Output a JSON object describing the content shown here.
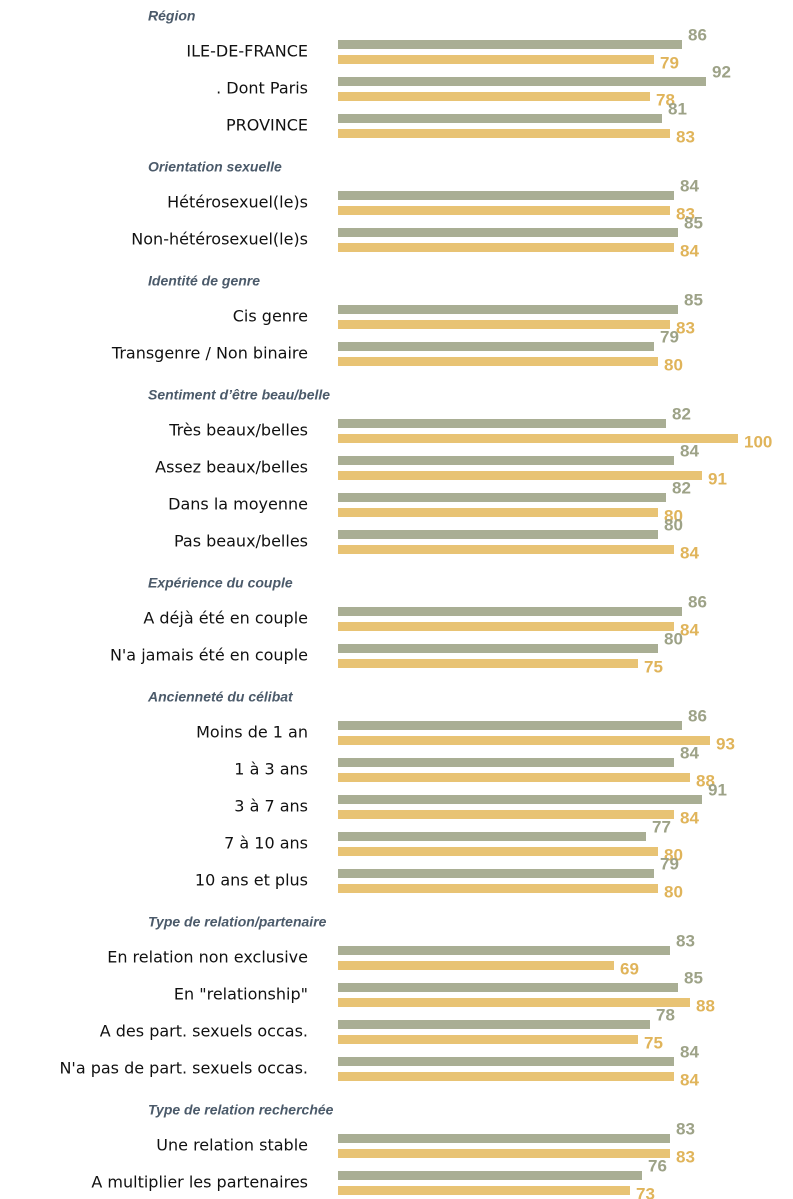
{
  "chart_data": [
    {
      "type": "bar",
      "title": "Région",
      "xlim": [
        0,
        100
      ],
      "categories": [
        "ILE-DE-FRANCE",
        ". Dont Paris",
        "PROVINCE"
      ],
      "series": [
        {
          "color": "#a9ae94",
          "values": [
            86,
            92,
            81
          ]
        },
        {
          "color": "#e8c374",
          "values": [
            79,
            78,
            83
          ]
        }
      ]
    },
    {
      "type": "bar",
      "title": "Orientation sexuelle",
      "xlim": [
        0,
        100
      ],
      "categories": [
        "Hétérosexuel(le)s",
        "Non-hétérosexuel(le)s"
      ],
      "series": [
        {
          "color": "#a9ae94",
          "values": [
            84,
            85
          ]
        },
        {
          "color": "#e8c374",
          "values": [
            83,
            84
          ]
        }
      ]
    },
    {
      "type": "bar",
      "title": "Identité de genre",
      "xlim": [
        0,
        100
      ],
      "categories": [
        "Cis genre",
        "Transgenre / Non binaire"
      ],
      "series": [
        {
          "color": "#a9ae94",
          "values": [
            85,
            79
          ]
        },
        {
          "color": "#e8c374",
          "values": [
            83,
            80
          ]
        }
      ]
    },
    {
      "type": "bar",
      "title": "Sentiment d’être beau/belle",
      "xlim": [
        0,
        100
      ],
      "categories": [
        "Très beaux/belles",
        "Assez beaux/belles",
        "Dans la moyenne",
        "Pas beaux/belles"
      ],
      "series": [
        {
          "color": "#a9ae94",
          "values": [
            82,
            84,
            82,
            80
          ]
        },
        {
          "color": "#e8c374",
          "values": [
            100,
            91,
            80,
            84
          ]
        }
      ]
    },
    {
      "type": "bar",
      "title": "Expérience du couple",
      "xlim": [
        0,
        100
      ],
      "categories": [
        "A déjà été en couple",
        "N'a jamais été en couple"
      ],
      "series": [
        {
          "color": "#a9ae94",
          "values": [
            86,
            80
          ]
        },
        {
          "color": "#e8c374",
          "values": [
            84,
            75
          ]
        }
      ]
    },
    {
      "type": "bar",
      "title": "Ancienneté du célibat",
      "xlim": [
        0,
        100
      ],
      "categories": [
        "Moins de 1 an",
        "1 à 3 ans",
        "3 à 7 ans",
        "7 à 10 ans",
        "10 ans et plus"
      ],
      "series": [
        {
          "color": "#a9ae94",
          "values": [
            86,
            84,
            91,
            77,
            79
          ]
        },
        {
          "color": "#e8c374",
          "values": [
            93,
            88,
            84,
            80,
            80
          ]
        }
      ]
    },
    {
      "type": "bar",
      "title": "Type de relation/partenaire",
      "xlim": [
        0,
        100
      ],
      "categories": [
        "En relation non exclusive",
        "En \"relationship\"",
        "A des part. sexuels occas.",
        "N'a pas de part. sexuels occas."
      ],
      "series": [
        {
          "color": "#a9ae94",
          "values": [
            83,
            85,
            78,
            84
          ]
        },
        {
          "color": "#e8c374",
          "values": [
            69,
            88,
            75,
            84
          ]
        }
      ]
    },
    {
      "type": "bar",
      "title": "Type de relation recherchée",
      "xlim": [
        0,
        100
      ],
      "categories": [
        "Une relation stable",
        "A multiplier les partenaires"
      ],
      "series": [
        {
          "color": "#a9ae94",
          "values": [
            83,
            76
          ]
        },
        {
          "color": "#e8c374",
          "values": [
            83,
            73
          ]
        }
      ]
    }
  ]
}
